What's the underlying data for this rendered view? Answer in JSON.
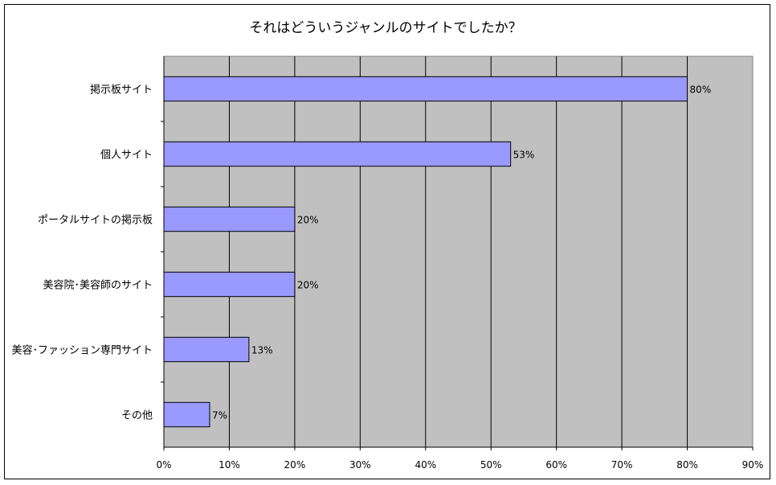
{
  "chart_data": {
    "type": "bar",
    "orientation": "horizontal",
    "title": "それはどういうジャンルのサイトでしたか？",
    "categories": [
      "掲示板サイト",
      "個人サイト",
      "ポータルサイトの掲示板",
      "美容院･美容師のサイト",
      "美容･ファッション専門サイト",
      "その他"
    ],
    "values": [
      80,
      53,
      20,
      20,
      13,
      7
    ],
    "value_labels": [
      "80%",
      "53%",
      "20%",
      "20%",
      "13%",
      "7%"
    ],
    "xlim": [
      0,
      90
    ],
    "x_ticks": [
      0,
      10,
      20,
      30,
      40,
      50,
      60,
      70,
      80,
      90
    ],
    "x_tick_labels": [
      "0%",
      "10%",
      "20%",
      "30%",
      "40%",
      "50%",
      "60%",
      "70%",
      "80%",
      "90%"
    ],
    "grid": true,
    "colors": {
      "bar": "#9999FF",
      "plot_background": "#C0C0C0"
    }
  }
}
